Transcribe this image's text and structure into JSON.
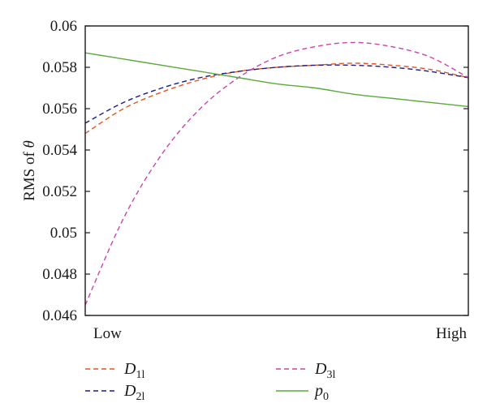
{
  "chart_data": {
    "type": "line",
    "xlabel": "",
    "ylabel": "RMS of θ",
    "ylabel_prefix": "RMS of ",
    "ylabel_symbol": "θ",
    "x_tick_labels": [
      "Low",
      "High"
    ],
    "x": [
      0.0,
      0.1,
      0.2,
      0.3,
      0.4,
      0.5,
      0.6,
      0.7,
      0.8,
      0.9,
      1.0
    ],
    "xlim": [
      0,
      1
    ],
    "ylim": [
      0.046,
      0.06
    ],
    "yticks": [
      0.046,
      0.048,
      0.05,
      0.052,
      0.054,
      0.056,
      0.058,
      0.06
    ],
    "ytick_labels": [
      "0.046",
      "0.048",
      "0.05",
      "0.052",
      "0.054",
      "0.056",
      "0.058",
      "0.06"
    ],
    "grid": false,
    "legend_position": "bottom",
    "series": [
      {
        "name": "D1l",
        "legend_main": "D",
        "legend_sub": "1l",
        "color": "#e8541e",
        "dash": "dashed",
        "values": [
          0.0548,
          0.056,
          0.0568,
          0.0574,
          0.0578,
          0.058,
          0.0581,
          0.0582,
          0.0581,
          0.0579,
          0.0575
        ]
      },
      {
        "name": "D2l",
        "legend_main": "D",
        "legend_sub": "2l",
        "color": "#1a1a8c",
        "dash": "dashed",
        "values": [
          0.0553,
          0.0563,
          0.057,
          0.0575,
          0.0578,
          0.058,
          0.0581,
          0.0581,
          0.058,
          0.0578,
          0.0575
        ]
      },
      {
        "name": "D3l",
        "legend_main": "D",
        "legend_sub": "3l",
        "color": "#cc44aa",
        "dash": "dashed",
        "values": [
          0.0465,
          0.0507,
          0.0538,
          0.056,
          0.0575,
          0.0585,
          0.059,
          0.0592,
          0.059,
          0.0585,
          0.0575
        ]
      },
      {
        "name": "p0",
        "legend_main": "p",
        "legend_sub": "0",
        "color": "#5aaa3c",
        "dash": "solid",
        "values": [
          0.0587,
          0.0584,
          0.0581,
          0.0578,
          0.0575,
          0.0572,
          0.057,
          0.0567,
          0.0565,
          0.0563,
          0.0561
        ]
      }
    ]
  }
}
